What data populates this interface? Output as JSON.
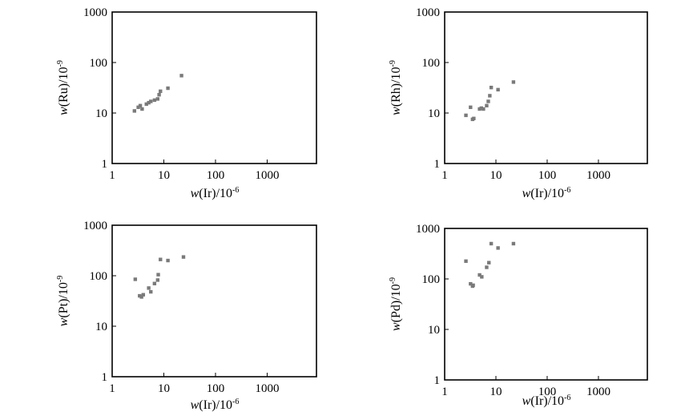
{
  "chart_data": [
    {
      "type": "scatter",
      "xlabel": {
        "var": "w",
        "paren": "(Ir)/10",
        "exp": "-6"
      },
      "ylabel": {
        "var": "w",
        "paren": "(Ru)/10",
        "exp": "-9"
      },
      "xscale": "log",
      "yscale": "log",
      "xlim": [
        1,
        9000
      ],
      "ylim": [
        1,
        1000
      ],
      "xticks": [
        "1",
        "10",
        "100",
        "1000"
      ],
      "yticks": [
        "1",
        "10",
        "100",
        "1000"
      ],
      "grid": false,
      "points": [
        {
          "x": 2.7,
          "y": 11
        },
        {
          "x": 3.2,
          "y": 13
        },
        {
          "x": 3.5,
          "y": 14
        },
        {
          "x": 3.8,
          "y": 12
        },
        {
          "x": 4.6,
          "y": 15
        },
        {
          "x": 5.1,
          "y": 16
        },
        {
          "x": 5.6,
          "y": 17
        },
        {
          "x": 6.6,
          "y": 18
        },
        {
          "x": 7.6,
          "y": 19
        },
        {
          "x": 8.1,
          "y": 23
        },
        {
          "x": 8.6,
          "y": 27
        },
        {
          "x": 12,
          "y": 31
        },
        {
          "x": 22,
          "y": 55
        }
      ]
    },
    {
      "type": "scatter",
      "xlabel": {
        "var": "w",
        "paren": "(Ir)/10",
        "exp": "-6"
      },
      "ylabel": {
        "var": "w",
        "paren": "(Rh)/10",
        "exp": "-9"
      },
      "xscale": "log",
      "yscale": "log",
      "xlim": [
        1,
        9000
      ],
      "ylim": [
        1,
        1000
      ],
      "xticks": [
        "1",
        "10",
        "100",
        "1000"
      ],
      "yticks": [
        "1",
        "10",
        "100",
        "1000"
      ],
      "grid": false,
      "points": [
        {
          "x": 2.6,
          "y": 9
        },
        {
          "x": 3.2,
          "y": 13
        },
        {
          "x": 3.5,
          "y": 7.5
        },
        {
          "x": 3.7,
          "y": 7.8
        },
        {
          "x": 4.8,
          "y": 12
        },
        {
          "x": 5.2,
          "y": 12.5
        },
        {
          "x": 5.7,
          "y": 12
        },
        {
          "x": 6.6,
          "y": 14
        },
        {
          "x": 7.1,
          "y": 17
        },
        {
          "x": 7.6,
          "y": 22
        },
        {
          "x": 8.1,
          "y": 32
        },
        {
          "x": 11,
          "y": 29
        },
        {
          "x": 22,
          "y": 41
        }
      ]
    },
    {
      "type": "scatter",
      "xlabel": {
        "var": "w",
        "paren": "(Ir)/10",
        "exp": "-6"
      },
      "ylabel": {
        "var": "w",
        "paren": "(Pt)/10",
        "exp": "-9"
      },
      "xscale": "log",
      "yscale": "log",
      "xlim": [
        1,
        9000
      ],
      "ylim": [
        1,
        1000
      ],
      "xticks": [
        "1",
        "10",
        "100",
        "1000"
      ],
      "yticks": [
        "1",
        "10",
        "100",
        "1000"
      ],
      "grid": false,
      "points": [
        {
          "x": 2.8,
          "y": 85
        },
        {
          "x": 3.4,
          "y": 40
        },
        {
          "x": 3.7,
          "y": 38
        },
        {
          "x": 4.0,
          "y": 42
        },
        {
          "x": 5.1,
          "y": 57
        },
        {
          "x": 5.6,
          "y": 48
        },
        {
          "x": 6.6,
          "y": 70
        },
        {
          "x": 7.6,
          "y": 82
        },
        {
          "x": 7.8,
          "y": 105
        },
        {
          "x": 8.6,
          "y": 210
        },
        {
          "x": 12,
          "y": 200
        },
        {
          "x": 24,
          "y": 235
        }
      ]
    },
    {
      "type": "scatter",
      "xlabel": {
        "var": "w",
        "paren": "(Ir)/10",
        "exp": "-6"
      },
      "ylabel": {
        "var": "w",
        "paren": "(Pd)/10",
        "exp": "-9"
      },
      "xscale": "log",
      "yscale": "log",
      "xlim": [
        1,
        9000
      ],
      "ylim": [
        1,
        1000
      ],
      "xticks": [
        "1",
        "10",
        "100",
        "1000"
      ],
      "yticks": [
        "1",
        "10",
        "100",
        "1000"
      ],
      "grid": false,
      "points": [
        {
          "x": 2.6,
          "y": 225
        },
        {
          "x": 3.2,
          "y": 80
        },
        {
          "x": 3.5,
          "y": 72
        },
        {
          "x": 3.6,
          "y": 75
        },
        {
          "x": 4.8,
          "y": 120
        },
        {
          "x": 5.3,
          "y": 110
        },
        {
          "x": 6.6,
          "y": 170
        },
        {
          "x": 7.3,
          "y": 210
        },
        {
          "x": 8.1,
          "y": 500
        },
        {
          "x": 11,
          "y": 410
        },
        {
          "x": 22,
          "y": 500
        }
      ]
    }
  ]
}
